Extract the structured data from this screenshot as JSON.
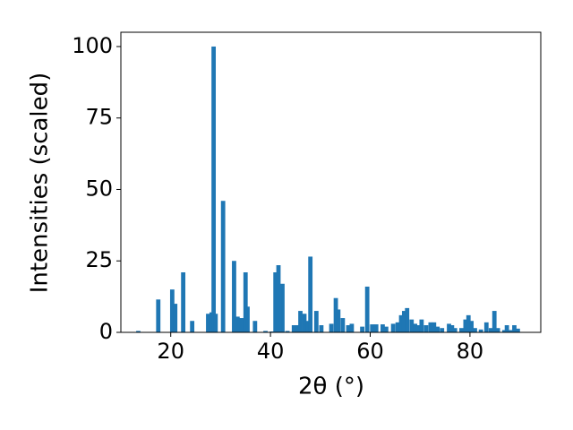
{
  "chart_data": {
    "type": "bar",
    "x_label": "2θ (°)",
    "y_label": "Intensities (scaled)",
    "color": "#1f77b4",
    "x": [
      13.5,
      17.5,
      20.3,
      20.9,
      22.5,
      24.3,
      27.5,
      28.2,
      28.6,
      29.0,
      30.5,
      32.7,
      33.4,
      34.2,
      35.0,
      35.4,
      36.9,
      39.0,
      40.3,
      41.0,
      41.6,
      42.4,
      43.4,
      44.7,
      45.5,
      46.0,
      46.8,
      47.5,
      48.0,
      49.2,
      50.2,
      52.2,
      53.1,
      53.6,
      54.5,
      55.6,
      56.3,
      58.4,
      59.4,
      60.4,
      61.2,
      62.5,
      63.2,
      64.6,
      65.5,
      66.2,
      66.8,
      67.4,
      68.3,
      69.0,
      69.6,
      70.3,
      71.2,
      72.1,
      72.8,
      73.5,
      74.4,
      75.8,
      76.4,
      77.0,
      78.3,
      79.1,
      79.7,
      80.3,
      81.0,
      82.2,
      83.3,
      84.2,
      84.9,
      85.6,
      86.9,
      87.4,
      88.1,
      88.9,
      89.6
    ],
    "values": [
      0.5,
      11.5,
      15,
      10,
      21,
      4,
      6.5,
      7,
      100,
      6.5,
      46,
      25,
      5.5,
      5,
      21,
      9,
      4,
      0.5,
      0.3,
      21,
      23.5,
      17,
      0.5,
      2.5,
      2.5,
      7.5,
      6.5,
      4,
      26.5,
      7.5,
      2.5,
      3,
      12,
      8,
      5,
      2.5,
      3,
      2,
      16,
      2.8,
      2.8,
      2.8,
      2,
      3,
      3.5,
      6,
      7.5,
      8.5,
      4.5,
      3,
      2.5,
      4.5,
      2.5,
      3.5,
      3.5,
      2,
      1.5,
      3,
      2.5,
      1.5,
      1.5,
      4.5,
      6,
      4,
      1.5,
      1,
      3.5,
      1.5,
      7.5,
      1.5,
      0.8,
      2.5,
      0.8,
      2.5,
      1.3
    ],
    "xlim": [
      10,
      94.2
    ],
    "ylim": [
      0,
      105
    ],
    "xticks": [
      20,
      40,
      60,
      80
    ],
    "yticks": [
      0,
      25,
      50,
      75,
      100
    ]
  }
}
